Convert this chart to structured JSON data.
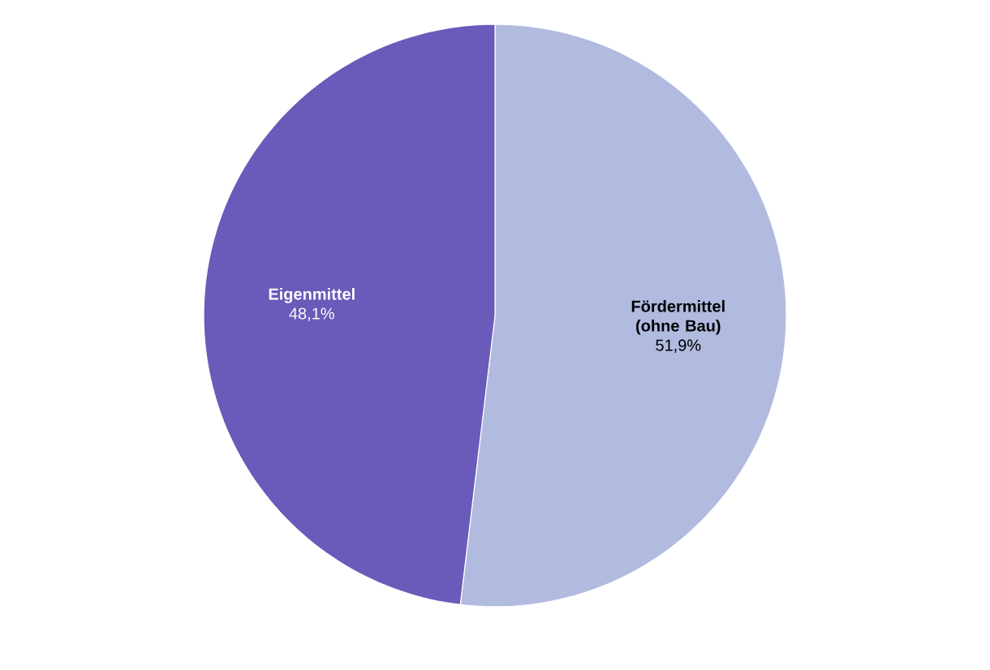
{
  "chart_data": {
    "type": "pie",
    "categories": [
      "Fördermittel (ohne Bau)",
      "Eigenmittel"
    ],
    "values": [
      51.9,
      48.1
    ],
    "colors": [
      "#b1badf",
      "#6a5ab9"
    ],
    "value_labels": [
      "51,9%",
      "48,1%"
    ]
  }
}
